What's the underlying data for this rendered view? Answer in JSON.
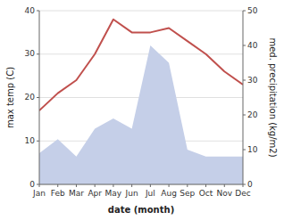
{
  "chart_data": {
    "type": "line",
    "xlabel": "date (month)",
    "ylabel": "max temp (C)",
    "y2label": "med. precipitation (kg/m2)",
    "categories": [
      "Jan",
      "Feb",
      "Mar",
      "Apr",
      "May",
      "Jun",
      "Jul",
      "Aug",
      "Sep",
      "Oct",
      "Nov",
      "Dec"
    ],
    "series": [
      {
        "type": "area",
        "axis": "y2",
        "color": "#c5cfe8",
        "values": [
          9,
          13,
          8,
          16,
          19,
          16,
          40,
          35,
          10,
          8,
          8,
          8
        ]
      },
      {
        "type": "line",
        "color": "#c0504d",
        "values": [
          17,
          21,
          24,
          30,
          38,
          35,
          35,
          36,
          33,
          30,
          26,
          23
        ]
      }
    ],
    "ylim": [
      0,
      40
    ],
    "yticks": [
      0,
      10,
      20,
      30,
      40
    ],
    "y2lim": [
      0,
      50
    ],
    "y2ticks": [
      0,
      10,
      20,
      30,
      40,
      50
    ],
    "grid": true
  }
}
